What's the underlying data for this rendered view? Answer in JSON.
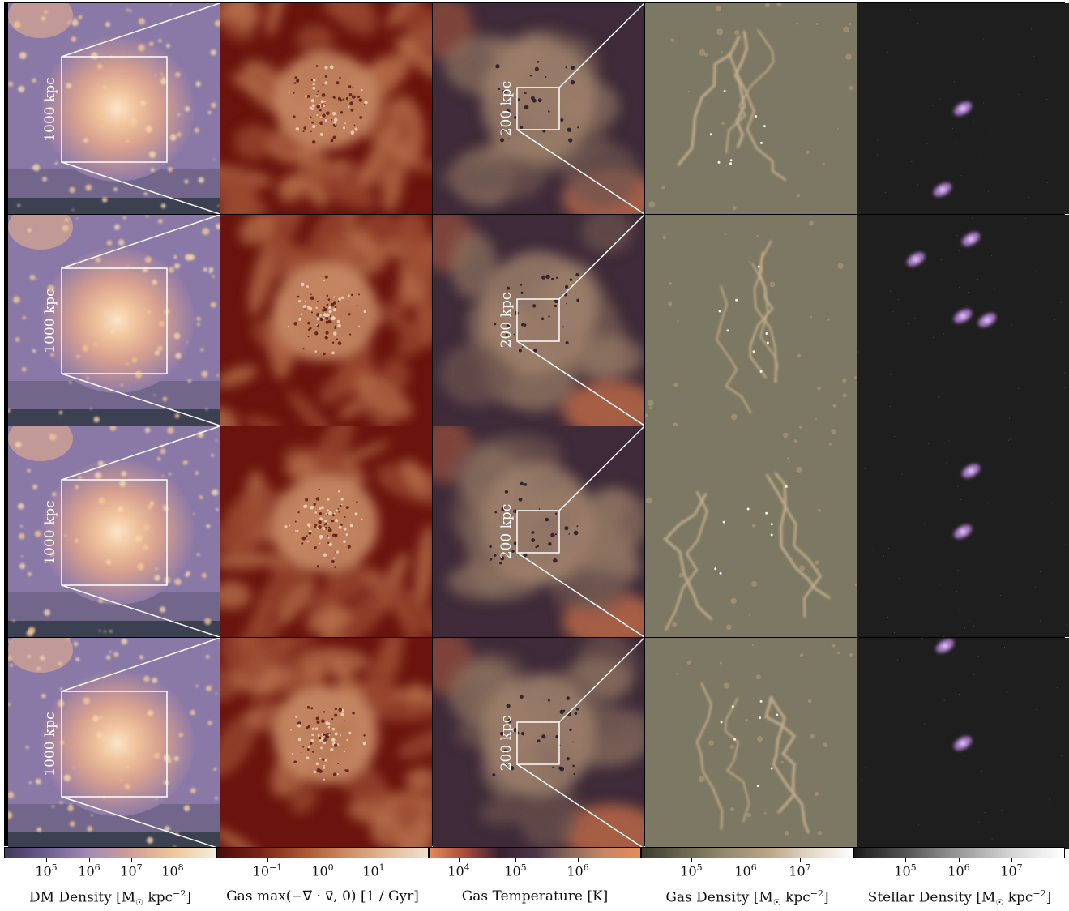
{
  "rows": 4,
  "scale_labels": {
    "dm": "1000 kpc",
    "temperature": "200 kpc"
  },
  "colorbars": [
    {
      "id": "dm",
      "label": "DM Density [M☉ kpc⁻²]",
      "ticks": [
        "10⁵",
        "10⁶",
        "10⁷",
        "10⁸"
      ],
      "colors": [
        "#3f3a5e",
        "#6d5f92",
        "#a58bb7",
        "#cf9f98",
        "#eec79a",
        "#f7ecd9"
      ]
    },
    {
      "id": "divergence",
      "label": "Gas max(−∇⃗ · v⃗, 0) [1 / Gyr]",
      "ticks": [
        "10⁻¹",
        "10⁰",
        "10¹"
      ],
      "colors": [
        "#4a0c08",
        "#7a2218",
        "#a8532f",
        "#cd8860",
        "#e3b896",
        "#efe0cf"
      ]
    },
    {
      "id": "temperature",
      "label": "Gas Temperature [K]",
      "ticks": [
        "10⁴",
        "10⁵",
        "10⁶"
      ],
      "colors": [
        "#e48a5b",
        "#a94c39",
        "#3a2232",
        "#4c3546",
        "#8b6a5c",
        "#c98664",
        "#e48a5b"
      ]
    },
    {
      "id": "gas",
      "label": "Gas Density [M☉ kpc⁻²]",
      "ticks": [
        "10⁵",
        "10⁶",
        "10⁷"
      ],
      "colors": [
        "#3d3c2e",
        "#6b6750",
        "#958a6e",
        "#bba486",
        "#e2d8c8",
        "#ffffff"
      ]
    },
    {
      "id": "stellar",
      "label": "Stellar Density [M☉ kpc⁻²]",
      "ticks": [
        "10⁵",
        "10⁶",
        "10⁷"
      ],
      "colors": [
        "#1b1b1b",
        "#555555",
        "#9a9a9a",
        "#d5d5d5",
        "#ffffff"
      ]
    }
  ]
}
